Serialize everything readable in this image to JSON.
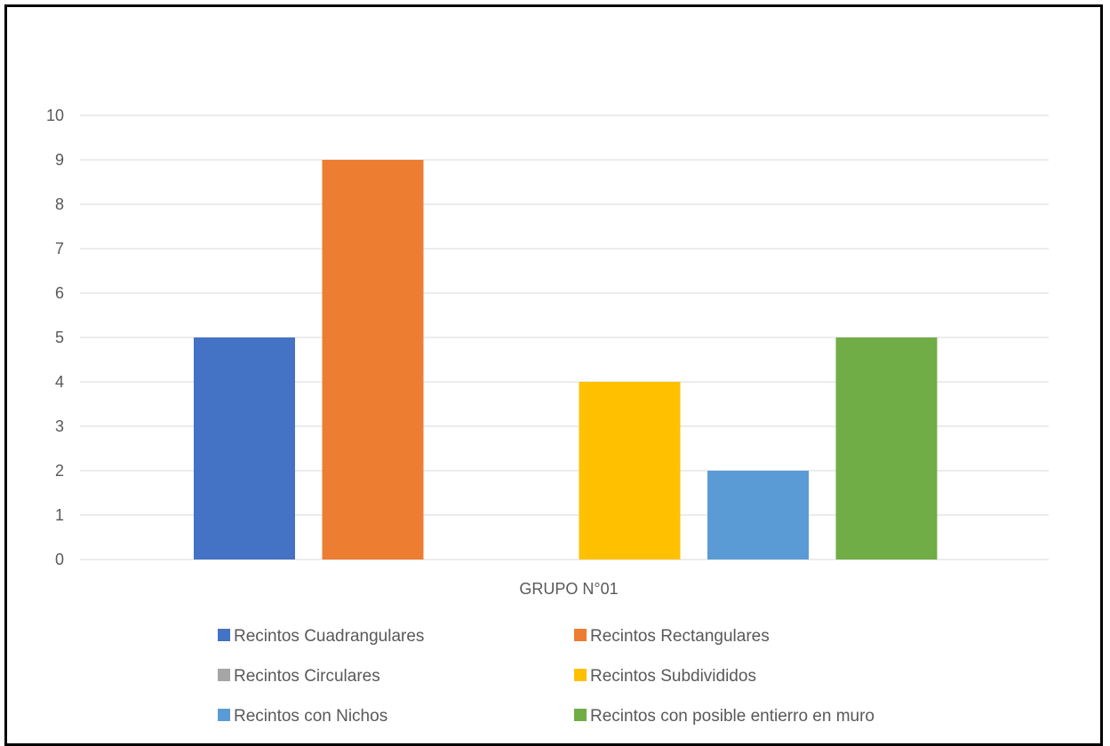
{
  "chart_data": {
    "type": "bar",
    "title": "",
    "xlabel": "",
    "ylabel": "",
    "categories": [
      "GRUPO N°01"
    ],
    "ylim": [
      0,
      10
    ],
    "yticks": [
      0,
      1,
      2,
      3,
      4,
      5,
      6,
      7,
      8,
      9,
      10
    ],
    "grid": true,
    "legend": "bottom",
    "series": [
      {
        "name": "Recintos Cuadrangulares",
        "values": [
          5
        ],
        "color": "#4472C4"
      },
      {
        "name": "Recintos Rectangulares",
        "values": [
          9
        ],
        "color": "#ED7D31"
      },
      {
        "name": "Recintos Circulares",
        "values": [
          0
        ],
        "color": "#A5A5A5"
      },
      {
        "name": "Recintos Subdivididos",
        "values": [
          4
        ],
        "color": "#FFC000"
      },
      {
        "name": "Recintos con Nichos",
        "values": [
          2
        ],
        "color": "#5B9BD5"
      },
      {
        "name": "Recintos con posible entierro en muro",
        "values": [
          5
        ],
        "color": "#70AD47"
      }
    ]
  }
}
